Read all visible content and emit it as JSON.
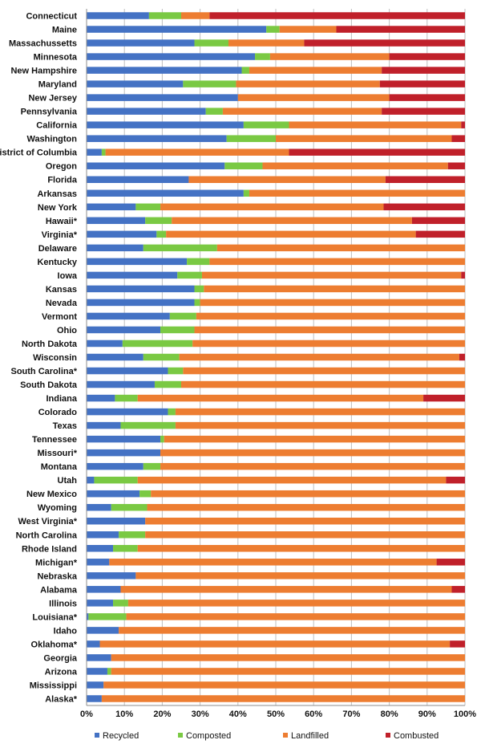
{
  "chart_data": {
    "type": "bar",
    "orientation": "horizontal",
    "stacked": true,
    "xlabel": "",
    "ylabel": "",
    "xlim": [
      0,
      100
    ],
    "x_ticks": [
      "0%",
      "10%",
      "20%",
      "30%",
      "40%",
      "50%",
      "60%",
      "70%",
      "80%",
      "90%",
      "100%"
    ],
    "grid": true,
    "legend_position": "bottom",
    "categories": [
      "Connecticut",
      "Maine",
      "Massachussetts",
      "Minnesota",
      "New Hampshire",
      "Maryland",
      "New Jersey",
      "Pennsylvania",
      "California",
      "Washington",
      "District of Columbia",
      "Oregon",
      "Florida",
      "Arkansas",
      "New York",
      "Hawaii*",
      "Virginia*",
      "Delaware",
      "Kentucky",
      "Iowa",
      "Kansas",
      "Nevada",
      "Vermont",
      "Ohio",
      "North Dakota",
      "Wisconsin",
      "South Carolina*",
      "South Dakota",
      "Indiana",
      "Colorado",
      "Texas",
      "Tennessee",
      "Missouri*",
      "Montana",
      "Utah",
      "New Mexico",
      "Wyoming",
      "West Virginia*",
      "North Carolina",
      "Rhode Island",
      "Michigan*",
      "Nebraska",
      "Alabama",
      "Illinois",
      "Louisiana*",
      "Idaho",
      "Oklahoma*",
      "Georgia",
      "Arizona",
      "Mississippi",
      "Alaska*"
    ],
    "series": [
      {
        "name": "Recycled",
        "color": "#4472C4",
        "values": [
          16.5,
          47.5,
          28.5,
          44.5,
          41,
          25.5,
          40,
          31.5,
          41.5,
          37,
          4,
          36.5,
          27,
          41.5,
          13,
          15.5,
          18.5,
          15,
          26.5,
          24,
          28.5,
          28.5,
          22,
          19.5,
          9.5,
          15,
          21.5,
          18,
          7.5,
          21.5,
          9,
          19.5,
          19.5,
          15,
          2,
          14,
          6.5,
          15.5,
          8.5,
          7,
          6,
          13,
          9,
          7,
          0.5,
          8.5,
          3.5,
          6.5,
          5.5,
          4.5,
          4
        ]
      },
      {
        "name": "Composted",
        "color": "#7AC943",
        "values": [
          8.5,
          3.5,
          9,
          4,
          2,
          14,
          0,
          4.5,
          12,
          13,
          1,
          10,
          0,
          1.5,
          6.5,
          7,
          2.5,
          19.5,
          6,
          6.5,
          2.5,
          1.5,
          7,
          9,
          18.5,
          9.5,
          4,
          7,
          6,
          2,
          14.5,
          1,
          0,
          4.5,
          11.5,
          3,
          9.5,
          0,
          7,
          6.5,
          0,
          0,
          0,
          4,
          10,
          0,
          0,
          0,
          1,
          0,
          0
        ]
      },
      {
        "name": "Landfilled",
        "color": "#ED7D31",
        "values": [
          7.5,
          15,
          20,
          31.5,
          35,
          38,
          40,
          42,
          45.5,
          46.5,
          48.5,
          49,
          52,
          57,
          59,
          63.5,
          66,
          65.5,
          67.5,
          68.5,
          69,
          70,
          71,
          71.5,
          72,
          74,
          74.5,
          75,
          75.5,
          76.5,
          76.5,
          79.5,
          80.5,
          80.5,
          81.5,
          83,
          84,
          84.5,
          84.5,
          86.5,
          86.5,
          87,
          87.5,
          89,
          89.5,
          91.5,
          92.5,
          93.5,
          93.5,
          95.5,
          96
        ]
      },
      {
        "name": "Combusted",
        "color": "#C0202A",
        "values": [
          67.5,
          34,
          42.5,
          20,
          22,
          22.5,
          20,
          22,
          1,
          3.5,
          46.5,
          4.5,
          21,
          0,
          21.5,
          14,
          13,
          0,
          0,
          1,
          0,
          0,
          0,
          0,
          0,
          1.5,
          0,
          0,
          11,
          0,
          0,
          0,
          0,
          0,
          5,
          0,
          0,
          0,
          0,
          0,
          7.5,
          0,
          3.5,
          0,
          0,
          0,
          4,
          0,
          0,
          0,
          0
        ]
      }
    ]
  }
}
